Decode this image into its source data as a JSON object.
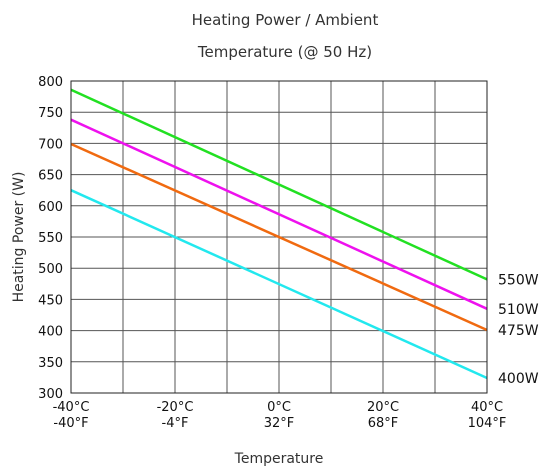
{
  "chart_data": {
    "type": "line",
    "title_lines": [
      "Heating Power / Ambient",
      "Temperature (@ 50 Hz)"
    ],
    "xlabel": "Temperature",
    "ylabel": "Heating Power (W)",
    "x_unit": "°C",
    "xlim": [
      -40,
      40
    ],
    "ylim": [
      300,
      800
    ],
    "yticks": [
      300,
      350,
      400,
      450,
      500,
      550,
      600,
      650,
      700,
      750,
      800
    ],
    "xticks": [
      {
        "c": -40,
        "top": "-40°C",
        "bottom": "-40°F"
      },
      {
        "c": -20,
        "top": "-20°C",
        "bottom": "-4°F"
      },
      {
        "c": 0,
        "top": "0°C",
        "bottom": "32°F"
      },
      {
        "c": 20,
        "top": "20°C",
        "bottom": "68°F"
      },
      {
        "c": 40,
        "top": "40°C",
        "bottom": "104°F"
      }
    ],
    "x_gridlines": [
      -40,
      -30,
      -20,
      -10,
      0,
      10,
      20,
      30,
      40
    ],
    "grid": true,
    "series": [
      {
        "name": "550W",
        "color": "#22e022",
        "points": [
          [
            -40,
            786
          ],
          [
            40,
            482
          ]
        ]
      },
      {
        "name": "510W",
        "color": "#ee11ee",
        "points": [
          [
            -40,
            738
          ],
          [
            40,
            435
          ]
        ]
      },
      {
        "name": "475W",
        "color": "#f06a10",
        "points": [
          [
            -40,
            699
          ],
          [
            40,
            401
          ]
        ]
      },
      {
        "name": "400W",
        "color": "#22e8ee",
        "points": [
          [
            -40,
            625
          ],
          [
            40,
            324
          ]
        ]
      }
    ]
  }
}
